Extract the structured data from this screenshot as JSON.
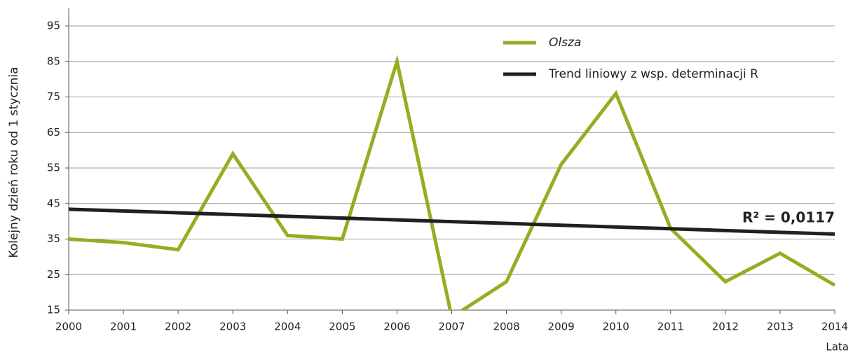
{
  "chart_data": {
    "type": "line",
    "x_label": "Lata",
    "y_label": "Kolejny dzień roku od 1 stycznia",
    "annotation": "R² = 0,0117",
    "x": [
      2000,
      2001,
      2002,
      2003,
      2004,
      2005,
      2006,
      2007,
      2008,
      2009,
      2010,
      2011,
      2012,
      2013,
      2014
    ],
    "series": [
      {
        "name": "Olsza",
        "color": "#9aab23",
        "values": [
          35,
          34,
          32,
          59,
          36,
          35,
          85,
          13,
          23,
          56,
          76,
          38,
          23,
          31,
          22
        ]
      },
      {
        "name": "Trend liniowy z wsp. determinacji R",
        "color": "#231f20",
        "values": [
          43.4,
          42.9,
          42.4,
          41.9,
          41.4,
          40.9,
          40.4,
          39.9,
          39.4,
          38.9,
          38.4,
          37.9,
          37.4,
          36.9,
          36.4
        ]
      }
    ],
    "xlim": [
      2000,
      2014
    ],
    "xticks": [
      2000,
      2001,
      2002,
      2003,
      2004,
      2005,
      2006,
      2007,
      2008,
      2009,
      2010,
      2011,
      2012,
      2013,
      2014
    ],
    "ylim": [
      15,
      95
    ],
    "yticks": [
      15,
      25,
      35,
      45,
      55,
      65,
      75,
      85,
      95
    ],
    "grid": true
  }
}
